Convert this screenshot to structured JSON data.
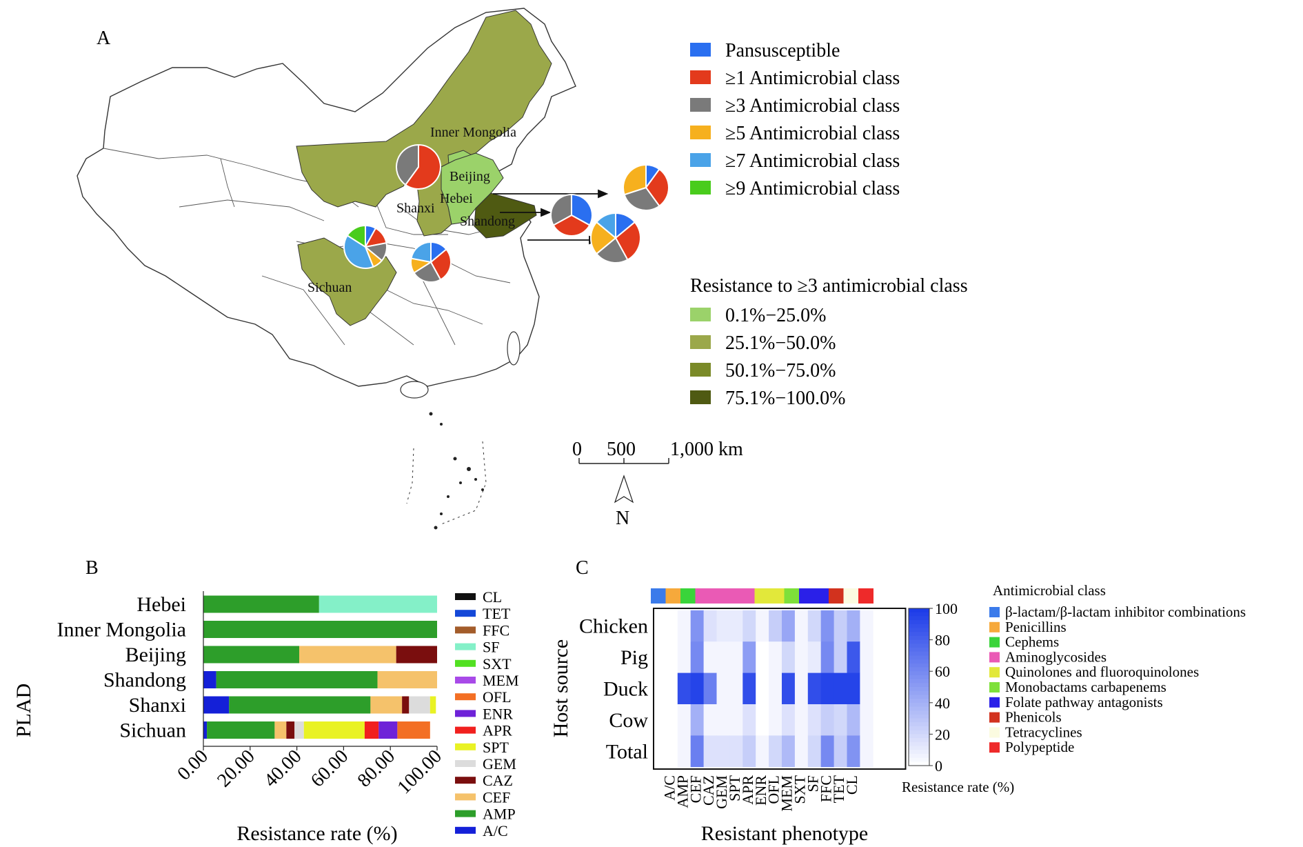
{
  "panel_labels": {
    "a": "A",
    "b": "B",
    "c": "C"
  },
  "panel_a": {
    "province_labels": [
      "Inner Mongolia",
      "Beijing",
      "Hebei",
      "Shanxi",
      "Shandong",
      "Sichuan"
    ],
    "legend_mdr": {
      "items": [
        "Pansusceptible",
        "≥1 Antimicrobial class",
        "≥3 Antimicrobial class",
        "≥5 Antimicrobial class",
        "≥7 Antimicrobial class",
        "≥9 Antimicrobial class"
      ],
      "colors": [
        "#2a6ff0",
        "#e33a1c",
        "#7a7a7a",
        "#f6b01e",
        "#4aa3e8",
        "#49cc1c"
      ]
    },
    "legend_resistance": {
      "title": "Resistance to ≥3 antimicrobial class",
      "items": [
        "0.1%−25.0%",
        "25.1%−50.0%",
        "50.1%−75.0%",
        "75.1%−100.0%"
      ],
      "colors": [
        "#9bd26a",
        "#9ba84a",
        "#7a8a28",
        "#4f5a12"
      ]
    },
    "scale_bar": {
      "ticks": [
        "0",
        "500",
        "1,000 km"
      ],
      "north": "N"
    },
    "pies": [
      {
        "region": "Inner Mongolia",
        "values": [
          0,
          60,
          40,
          0,
          0,
          0
        ]
      },
      {
        "region": "Sichuan",
        "values": [
          8,
          14,
          14,
          8,
          40,
          16
        ]
      },
      {
        "region": "Shanxi",
        "values": [
          14,
          28,
          24,
          12,
          22,
          0
        ]
      },
      {
        "region": "Shandong",
        "values": [
          33,
          34,
          33,
          0,
          0,
          0
        ]
      },
      {
        "region": "Hebei",
        "values": [
          14,
          28,
          22,
          22,
          14,
          0
        ]
      },
      {
        "region": "Beijing",
        "values": [
          10,
          30,
          30,
          30,
          0,
          0
        ]
      }
    ]
  },
  "chart_data": [
    {
      "panel": "B",
      "type": "bar",
      "orientation": "horizontal",
      "stacked": true,
      "ylabel": "PLAD",
      "xlabel": "Resistance rate (%)",
      "xlim": [
        0,
        100
      ],
      "xticks": [
        "0.00",
        "20.00",
        "40.00",
        "60.00",
        "80.00",
        "100.00"
      ],
      "categories": [
        "Hebei",
        "Inner Mongolia",
        "Beijing",
        "Shandong",
        "Shanxi",
        "Sichuan"
      ],
      "series": [
        {
          "name": "A/C",
          "color": "#1420d8",
          "values": [
            0,
            0,
            0,
            5.5,
            11,
            1.5
          ]
        },
        {
          "name": "AMP",
          "color": "#2d9e2a",
          "values": [
            49.5,
            100,
            41,
            69,
            60.5,
            29
          ]
        },
        {
          "name": "CEF",
          "color": "#f5c26b",
          "values": [
            0,
            0,
            41.5,
            25.5,
            13.5,
            5
          ]
        },
        {
          "name": "CAZ",
          "color": "#7a0e0e",
          "values": [
            0,
            0,
            17.5,
            0,
            3,
            3.5
          ]
        },
        {
          "name": "GEM",
          "color": "#dcdcdc",
          "values": [
            0,
            0,
            0,
            0,
            9,
            4
          ]
        },
        {
          "name": "SPT",
          "color": "#e9f224",
          "values": [
            0,
            0,
            0,
            0,
            2.5,
            26
          ]
        },
        {
          "name": "APR",
          "color": "#f1201e",
          "values": [
            0,
            0,
            0,
            0,
            0,
            6
          ]
        },
        {
          "name": "ENR",
          "color": "#6e22d8",
          "values": [
            0,
            0,
            0,
            0,
            0,
            8
          ]
        },
        {
          "name": "OFL",
          "color": "#f36f24",
          "values": [
            0,
            0,
            0,
            0,
            0,
            14
          ]
        },
        {
          "name": "MEM",
          "color": "#a84ae8",
          "values": [
            0,
            0,
            0,
            0,
            0,
            0
          ]
        },
        {
          "name": "SXT",
          "color": "#52e022",
          "values": [
            0,
            0,
            0,
            0,
            0,
            0
          ]
        },
        {
          "name": "SF",
          "color": "#84f0c8",
          "values": [
            50.5,
            0,
            0,
            0,
            0,
            0
          ]
        },
        {
          "name": "FFC",
          "color": "#a35c2a",
          "values": [
            0,
            0,
            0,
            0,
            0,
            0
          ]
        },
        {
          "name": "TET",
          "color": "#1448d8",
          "values": [
            0,
            0,
            0,
            0,
            0,
            0
          ]
        },
        {
          "name": "CL",
          "color": "#111111",
          "values": [
            0,
            0,
            0,
            0,
            0,
            0
          ]
        }
      ],
      "legend_order": [
        "CL",
        "TET",
        "FFC",
        "SF",
        "SXT",
        "MEM",
        "OFL",
        "ENR",
        "APR",
        "SPT",
        "GEM",
        "CAZ",
        "CEF",
        "AMP",
        "A/C"
      ],
      "legend_placement": "right"
    },
    {
      "panel": "C",
      "type": "heatmap",
      "ylabel": "Host source",
      "xlabel": "Resistant phenotype",
      "rows": [
        "Chicken",
        "Pig",
        "Duck",
        "Cow",
        "Total"
      ],
      "columns": [
        "A/C",
        "AMP",
        "CEF",
        "CAZ",
        "GEM",
        "SPT",
        "APR",
        "ENR",
        "OFL",
        "MEM",
        "SXT",
        "SF",
        "FFC",
        "TET",
        "CL"
      ],
      "values": [
        [
          5,
          55,
          15,
          10,
          10,
          20,
          5,
          25,
          45,
          5,
          20,
          55,
          25,
          40,
          5
        ],
        [
          5,
          60,
          5,
          5,
          5,
          50,
          0,
          5,
          20,
          5,
          10,
          60,
          25,
          85,
          5
        ],
        [
          90,
          95,
          65,
          5,
          5,
          90,
          0,
          5,
          90,
          5,
          90,
          95,
          95,
          95,
          5
        ],
        [
          5,
          40,
          5,
          5,
          5,
          15,
          0,
          5,
          15,
          5,
          15,
          25,
          20,
          35,
          5
        ],
        [
          5,
          65,
          15,
          15,
          15,
          25,
          5,
          20,
          35,
          5,
          20,
          60,
          25,
          55,
          5
        ]
      ],
      "class_bar_colors": [
        "#3b7bea",
        "#f6a93b",
        "#3ad43a",
        "#ea5ab5",
        "#ea5ab5",
        "#ea5ab5",
        "#ea5ab5",
        "#e2e83a",
        "#e2e83a",
        "#7ee03a",
        "#2a20e8",
        "#2a20e8",
        "#d2321e",
        "#fbfbe0",
        "#ee2a2a"
      ],
      "colorbar": {
        "title": "Resistance rate (%)",
        "ticks": [
          "100",
          "80",
          "60",
          "40",
          "20",
          "0"
        ],
        "range": [
          0,
          100
        ]
      },
      "class_legend": {
        "title": "Antimicrobial class",
        "items": [
          "β-lactam/β-lactam inhibitor combinations",
          "Penicillins",
          "Cephems",
          "Aminoglycosides",
          "Quinolones and fluoroquinolones",
          "Monobactams carbapenems",
          "Folate pathway antagonists",
          "Phenicols",
          "Tetracyclines",
          "Polypeptide"
        ],
        "colors": [
          "#3b7bea",
          "#f6a93b",
          "#3ad43a",
          "#ea5ab5",
          "#e2e83a",
          "#7ee03a",
          "#2a20e8",
          "#d2321e",
          "#fbfbe0",
          "#ee2a2a"
        ]
      }
    }
  ]
}
